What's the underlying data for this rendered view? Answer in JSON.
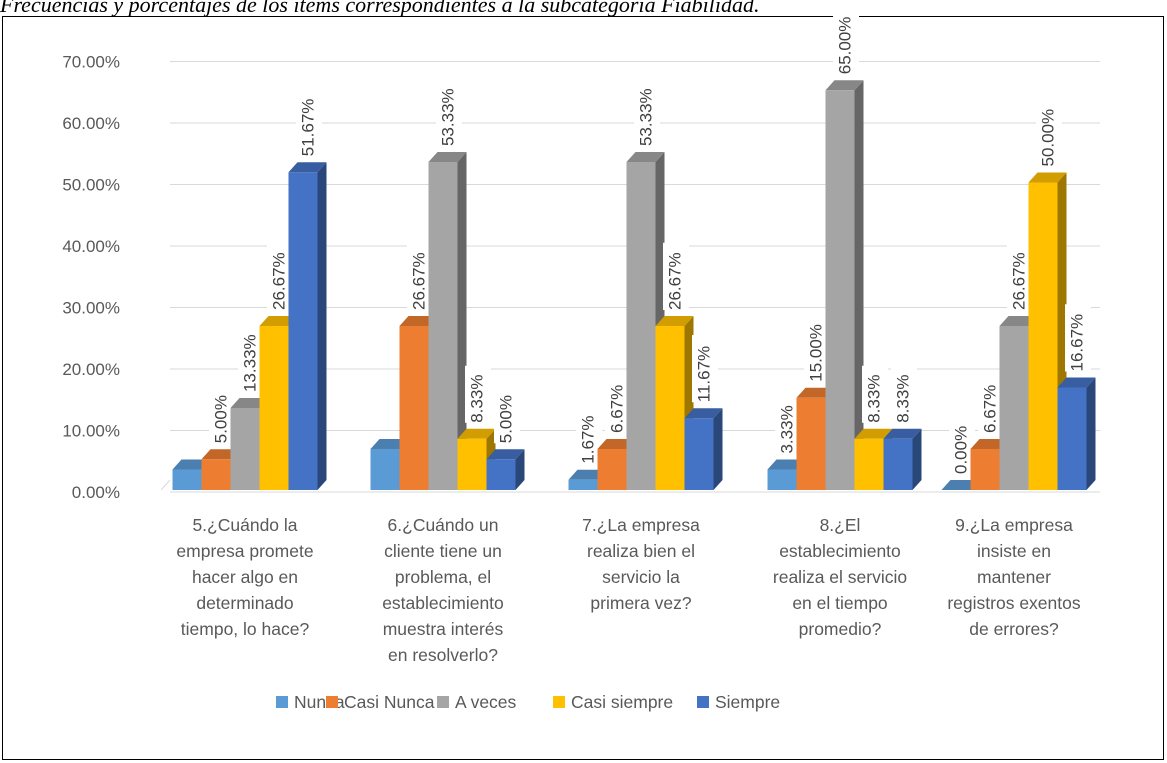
{
  "caption": "Frecuencias y porcentajes de los ítems correspondientes a la subcategoría Fiabilidad.",
  "chart_data": {
    "type": "bar",
    "title": "",
    "xlabel": "",
    "ylabel": "",
    "ylim": [
      0,
      70
    ],
    "yticks": [
      "0.00%",
      "10.00%",
      "20.00%",
      "30.00%",
      "40.00%",
      "50.00%",
      "60.00%",
      "70.00%"
    ],
    "grid": true,
    "legend_position": "bottom",
    "categories": [
      [
        "5.¿Cuándo la",
        "empresa promete",
        "hacer algo en",
        "determinado",
        "tiempo, lo hace?"
      ],
      [
        "6.¿Cuándo un",
        "cliente tiene un",
        "problema, el",
        "establecimiento",
        "muestra interés",
        "en resolverlo?"
      ],
      [
        "7.¿La empresa",
        "realiza bien el",
        "servicio la",
        "primera vez?"
      ],
      [
        "8.¿El",
        "establecimiento",
        "realiza el servicio",
        "en el tiempo",
        "promedio?"
      ],
      [
        "9.¿La empresa",
        "insiste en",
        "mantener",
        "registros exentos",
        "de errores?"
      ]
    ],
    "series": [
      {
        "name": "Nunca",
        "color": "#5B9BD5",
        "values": [
          3.33,
          6.67,
          1.67,
          3.33,
          0.0
        ],
        "labels": [
          "",
          "",
          "1.67%",
          "3.33%",
          "0.00%"
        ]
      },
      {
        "name": "Casi Nunca",
        "color": "#ED7D31",
        "values": [
          5.0,
          26.67,
          6.67,
          15.0,
          6.67
        ],
        "labels": [
          "5.00%",
          "26.67%",
          "6.67%",
          "15.00%",
          "6.67%"
        ]
      },
      {
        "name": "A veces",
        "color": "#A5A5A5",
        "values": [
          13.33,
          53.33,
          53.33,
          65.0,
          26.67
        ],
        "labels": [
          "13.33%",
          "53.33%",
          "53.33%",
          "65.00%",
          "26.67%"
        ]
      },
      {
        "name": "Casi siempre",
        "color": "#FFC000",
        "values": [
          26.67,
          8.33,
          26.67,
          8.33,
          50.0
        ],
        "labels": [
          "26.67%",
          "8.33%",
          "26.67%",
          "8.33%",
          "50.00%"
        ]
      },
      {
        "name": "Siempre",
        "color": "#4472C4",
        "values": [
          51.67,
          5.0,
          11.67,
          8.33,
          16.67
        ],
        "labels": [
          "51.67%",
          "5.00%",
          "11.67%",
          "8.33%",
          "16.67%"
        ]
      }
    ]
  }
}
